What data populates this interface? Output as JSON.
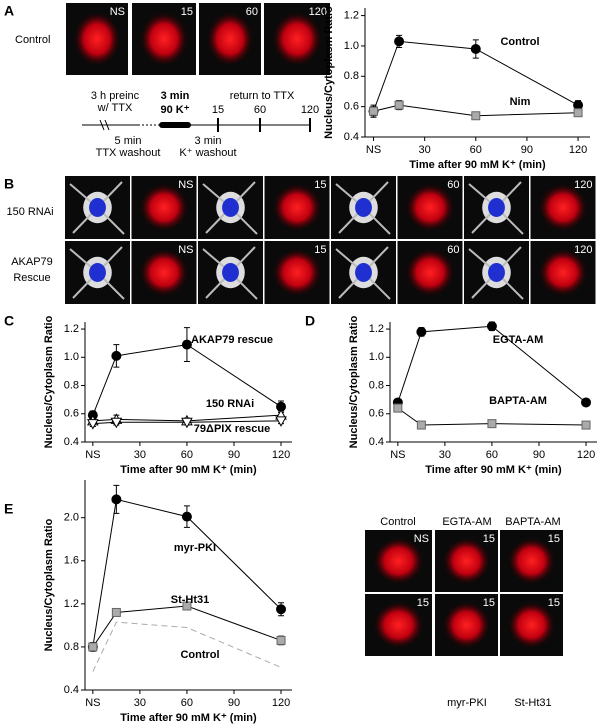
{
  "panel_letters": [
    "A",
    "B",
    "C",
    "D",
    "E"
  ],
  "panel_a": {
    "row_label": "Control",
    "image_tags": [
      "NS",
      "15",
      "60",
      "120"
    ],
    "timeline": {
      "preinc": "3 h preinc",
      "preinc_2": "w/ TTX",
      "stim": "3 min",
      "stim_2": "90 K⁺",
      "ticks": [
        "15",
        "60",
        "120"
      ],
      "return": "return to TTX",
      "wash1": "5 min",
      "wash1_2": "TTX washout",
      "wash2": "3 min",
      "wash2_2": "K⁺ washout"
    }
  },
  "panel_b": {
    "row_labels": [
      [
        "150 RNAi"
      ],
      [
        "AKAP79",
        "Rescue"
      ]
    ],
    "image_tags": [
      "NS",
      "15",
      "60",
      "120"
    ]
  },
  "panel_e_images": {
    "column_labels": [
      "Control",
      "EGTA-AM",
      "BAPTA-AM"
    ],
    "bottom_labels": [
      "myr-PKI",
      "St-Ht31"
    ],
    "tags": [
      "NS",
      "15",
      "15",
      "15",
      "15",
      "15"
    ]
  },
  "chart_data": [
    {
      "type": "line",
      "ylabel": "Nucleus/Cytoplasm Ratio",
      "xlabel": "Time after 90 mM K⁺ (min)",
      "x": [
        0,
        15,
        60,
        120
      ],
      "xlim": [
        -5,
        127
      ],
      "xticks": [
        {
          "value": 0,
          "label": "NS"
        },
        30,
        60,
        90,
        120
      ],
      "ylim": [
        0.4,
        1.25
      ],
      "yticks": [
        0.4,
        0.6,
        0.8,
        {
          "value": 1,
          "label": "1.0"
        },
        1.2
      ],
      "series": [
        {
          "name": "Control",
          "color": "#000000",
          "marker": "circle",
          "values": [
            0.57,
            1.03,
            0.98,
            0.61
          ],
          "errors": [
            0.03,
            0.04,
            0.06,
            0.03
          ]
        },
        {
          "name": "Nim",
          "color": "#aaaaaa",
          "marker": "square",
          "values": [
            0.57,
            0.61,
            0.54,
            0.56
          ],
          "errors": [
            0.04,
            0.03,
            0.01,
            0.02
          ]
        }
      ]
    },
    {
      "type": "line",
      "ylabel": "Nucleus/Cytoplasm Ratio",
      "xlabel": "Time after 90 mM K⁺ (min)",
      "x": [
        0,
        15,
        60,
        120
      ],
      "xlim": [
        -5,
        127
      ],
      "xticks": [
        {
          "value": 0,
          "label": "NS"
        },
        30,
        60,
        90,
        120
      ],
      "ylim": [
        0.4,
        1.25
      ],
      "yticks": [
        0.4,
        0.6,
        0.8,
        {
          "value": 1,
          "label": "1.0"
        },
        1.2
      ],
      "series": [
        {
          "name": "AKAP79 rescue",
          "color": "#000000",
          "marker": "circle",
          "values": [
            0.59,
            1.01,
            1.09,
            0.65
          ],
          "errors": [
            0.03,
            0.08,
            0.12,
            0.04
          ]
        },
        {
          "name": "150 RNAi",
          "color": "#ffffff",
          "marker": "triangle-up",
          "values": [
            0.55,
            0.56,
            0.55,
            0.59
          ],
          "errors": [
            0.02,
            0.03,
            0.02,
            0.03
          ]
        },
        {
          "name": "79ΔPIX rescue",
          "color": "#ffffff",
          "marker": "triangle-down",
          "values": [
            0.53,
            0.54,
            0.54,
            0.55
          ],
          "errors": [
            0.02,
            0.02,
            0.02,
            0.02
          ]
        }
      ]
    },
    {
      "type": "line",
      "ylabel": "Nucleus/Cytoplasm Ratio",
      "xlabel": "Time after 90 mM K⁺ (min)",
      "x": [
        0,
        15,
        60,
        120
      ],
      "xlim": [
        -5,
        127
      ],
      "xticks": [
        {
          "value": 0,
          "label": "NS"
        },
        30,
        60,
        90,
        120
      ],
      "ylim": [
        0.4,
        1.25
      ],
      "yticks": [
        0.4,
        0.6,
        0.8,
        {
          "value": 1,
          "label": "1.0"
        },
        1.2
      ],
      "series": [
        {
          "name": "EGTA-AM",
          "color": "#000000",
          "marker": "circle",
          "values": [
            0.68,
            1.18,
            1.22,
            0.68
          ],
          "errors": [
            0.02,
            0.03,
            0.03,
            0.02
          ]
        },
        {
          "name": "BAPTA-AM",
          "color": "#aaaaaa",
          "marker": "square",
          "values": [
            0.64,
            0.52,
            0.53,
            0.52
          ],
          "errors": [
            0.02,
            0.01,
            0.01,
            0.02
          ]
        }
      ]
    },
    {
      "type": "line",
      "ylabel": "Nucleus/Cytoplasm Ratio",
      "xlabel": "Time after 90 mM K⁺ (min)",
      "x": [
        0,
        15,
        60,
        120
      ],
      "xlim": [
        -5,
        127
      ],
      "xticks": [
        {
          "value": 0,
          "label": "NS"
        },
        30,
        60,
        90,
        120
      ],
      "ylim": [
        0.4,
        2.35
      ],
      "yticks": [
        0.4,
        0.8,
        1.2,
        1.6,
        {
          "value": 2,
          "label": "2.0"
        }
      ],
      "series": [
        {
          "name": "myr-PKI",
          "color": "#000000",
          "marker": "circle",
          "values": [
            0.8,
            2.17,
            2.01,
            1.15
          ],
          "errors": [
            0.04,
            0.13,
            0.1,
            0.06
          ]
        },
        {
          "name": "St-Ht31",
          "color": "#aaaaaa",
          "marker": "square",
          "values": [
            0.8,
            1.12,
            1.18,
            0.86
          ],
          "errors": [
            0.03,
            0.03,
            0.02,
            0.04
          ]
        },
        {
          "name": "Control",
          "color": "#aaaaaa",
          "marker": "none",
          "dash": true,
          "values": [
            0.57,
            1.03,
            0.98,
            0.61
          ]
        }
      ]
    }
  ]
}
